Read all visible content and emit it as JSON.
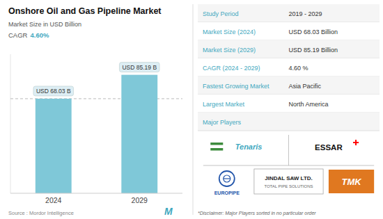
{
  "chart_data": {
    "type": "bar",
    "title": "Onshore Oil and Gas Pipeline Market",
    "subtitle": "Market Size in USD Billion",
    "cagr": {
      "label": "CAGR",
      "value": "4.60%"
    },
    "categories": [
      "2024",
      "2029"
    ],
    "values": [
      68.03,
      85.19
    ],
    "value_labels": [
      "USD 68.03 B",
      "USD 85.19 B"
    ],
    "data_labels": true,
    "color": "#7fc8d8",
    "ylim": [
      0,
      100
    ],
    "tick_labels": "x",
    "grid": false,
    "source": "Source :  Mordor Intelligence",
    "logo": "M",
    "table": [
      {
        "label": "Study Period",
        "value": "2019 - 2029"
      },
      {
        "label": "Market Size (2024)",
        "value": "USD 68.03 Billion"
      },
      {
        "label": "Market Size (2029)",
        "value": "USD 85.19 Billion"
      },
      {
        "label": "CAGR (2024 - 2029)",
        "value": "4.60 %"
      },
      {
        "label": "Fastest Growing Market",
        "value": "Asia Pacific"
      },
      {
        "label": "Largest Market",
        "value": "North America"
      },
      {
        "label": "Major Players"
      }
    ],
    "players": [
      {
        "name": "Tenaris"
      },
      {
        "name": "ESSAR"
      },
      {
        "name": "JINDAL SAW LTD.",
        "tagline": "TOTAL PIPE SOLUTIONS"
      },
      {
        "name": "EUROPIPE"
      },
      {
        "name": "TMK"
      }
    ],
    "disclaimer": "*Disclaimer: Major Players sorted in no particular order"
  }
}
